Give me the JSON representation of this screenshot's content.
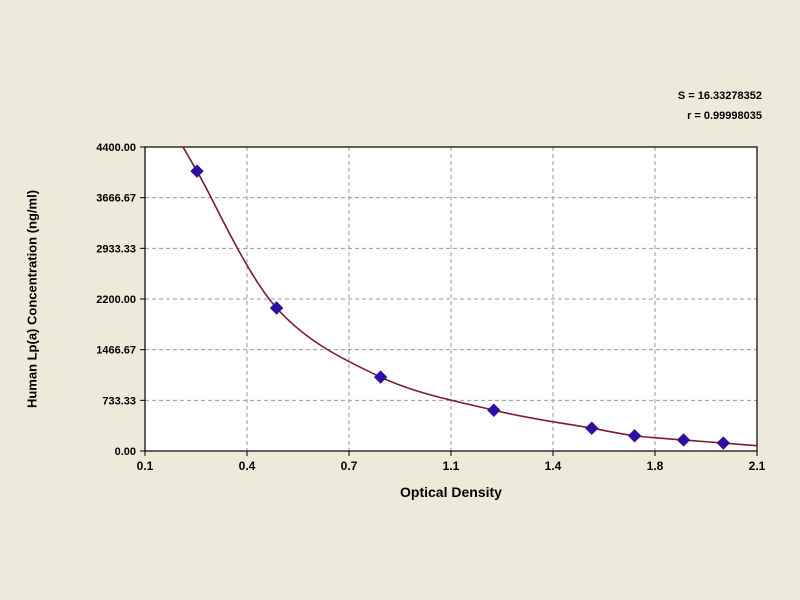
{
  "page": {
    "background_color": "#edeada",
    "plot_background_color": "#ffffff",
    "gridline_color": "#9a9a9a",
    "border_color": "#000000"
  },
  "chart_data": {
    "type": "scatter",
    "title": "",
    "xlabel": "Optical Density",
    "ylabel": "Human Lp(a) Concentration (ng/ml)",
    "annotations": [
      "S = 16.33278352",
      "r = 0.99998035"
    ],
    "x_tick_labels": [
      "0.1",
      "0.4",
      "0.7",
      "1.1",
      "1.4",
      "1.8",
      "2.1"
    ],
    "y_tick_labels": [
      "0.00",
      "733.33",
      "1466.67",
      "2200.00",
      "2933.33",
      "3666.67",
      "4400.00"
    ],
    "xlim": [
      0.1,
      2.1
    ],
    "ylim": [
      0,
      4400
    ],
    "grid": "dashed",
    "legend": "none",
    "series": [
      {
        "name": "Lp(a) standard curve",
        "marker": "diamond",
        "marker_color": "#2d10a2",
        "line_color": "#7d1b2b",
        "points": [
          {
            "x": 0.27,
            "y": 4050
          },
          {
            "x": 0.53,
            "y": 2070
          },
          {
            "x": 0.87,
            "y": 1070
          },
          {
            "x": 1.24,
            "y": 590
          },
          {
            "x": 1.56,
            "y": 330
          },
          {
            "x": 1.7,
            "y": 220
          },
          {
            "x": 1.86,
            "y": 160
          },
          {
            "x": 1.99,
            "y": 115
          }
        ]
      }
    ]
  }
}
